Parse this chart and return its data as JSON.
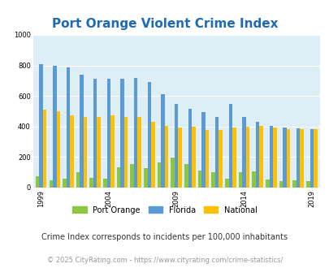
{
  "title": "Port Orange Violent Crime Index",
  "subtitle": "Crime Index corresponds to incidents per 100,000 inhabitants",
  "footer": "© 2025 CityRating.com - https://www.cityrating.com/crime-statistics/",
  "years": [
    1999,
    2000,
    2001,
    2002,
    2003,
    2004,
    2005,
    2006,
    2007,
    2008,
    2009,
    2010,
    2011,
    2012,
    2013,
    2014,
    2015,
    2016,
    2017,
    2018,
    2019
  ],
  "port_orange": [
    75,
    50,
    60,
    100,
    65,
    60,
    135,
    155,
    125,
    165,
    195,
    155,
    110,
    100,
    60,
    100,
    105,
    55,
    40,
    50,
    45
  ],
  "florida": [
    810,
    800,
    785,
    740,
    710,
    710,
    715,
    720,
    690,
    610,
    545,
    515,
    495,
    460,
    545,
    465,
    430,
    405,
    395,
    390,
    385
  ],
  "national": [
    510,
    500,
    475,
    465,
    465,
    475,
    465,
    460,
    430,
    405,
    395,
    398,
    375,
    380,
    395,
    400,
    405,
    395,
    385,
    385,
    385
  ],
  "color_port_orange": "#8dc63f",
  "color_florida": "#5b9bd5",
  "color_national": "#ffc000",
  "background_color": "#deeef6",
  "ylim": [
    0,
    1000
  ],
  "yticks": [
    0,
    200,
    400,
    600,
    800,
    1000
  ],
  "xtick_years": [
    1999,
    2004,
    2009,
    2014,
    2019
  ],
  "title_color": "#1f6bb0",
  "subtitle_color": "#333333",
  "footer_color": "#999999",
  "title_fontsize": 11,
  "subtitle_fontsize": 7,
  "footer_fontsize": 6,
  "legend_labels": [
    "Port Orange",
    "Florida",
    "National"
  ]
}
